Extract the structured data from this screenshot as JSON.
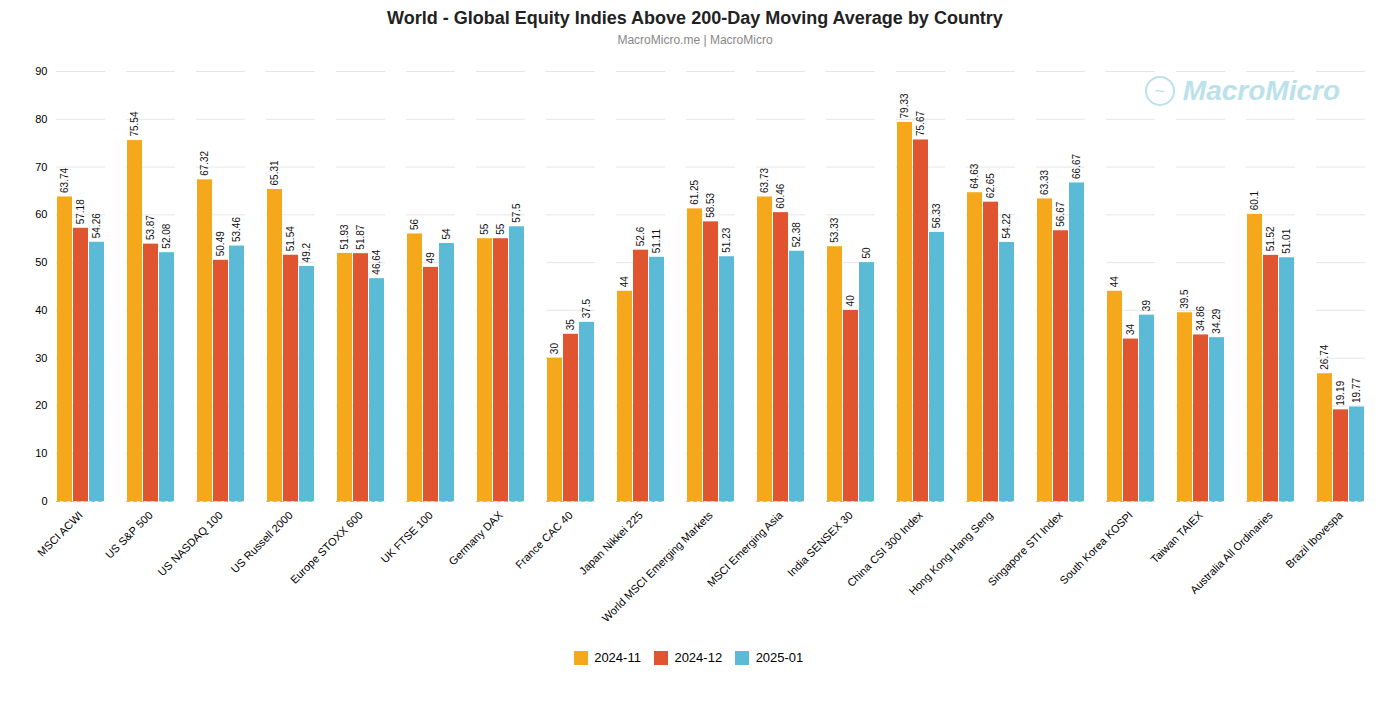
{
  "chart_data": {
    "type": "bar",
    "title": "World - Global Equity Indies Above 200-Day Moving Average by Country",
    "subtitle": "MacroMicro.me | MacroMicro",
    "annotations": [
      "MacroMicro",
      "~"
    ],
    "categories": [
      "MSCI ACWI",
      "US S&P 500",
      "US NASDAQ 100",
      "US Russell 2000",
      "Europe STOXX 600",
      "UK FTSE 100",
      "Germany DAX",
      "France CAC 40",
      "Japan Nikkei 225",
      "World MSCI Emerging Markets",
      "MSCI Emerging Asia",
      "India SENSEX 30",
      "China CSI 300 Index",
      "Hong Kong Hang Seng",
      "Singapore STI Index",
      "South Korea KOSPI",
      "Taiwan TAIEX",
      "Australia All Ordinaries",
      "Brazil Ibovespa"
    ],
    "series": [
      {
        "name": "2024-11",
        "color": "#F5A81C",
        "values": [
          63.74,
          75.54,
          67.32,
          65.31,
          51.93,
          56,
          55,
          30,
          44,
          61.25,
          63.73,
          53.33,
          79.33,
          64.63,
          63.33,
          44,
          39.5,
          60.1,
          26.74
        ]
      },
      {
        "name": "2024-12",
        "color": "#E05530",
        "values": [
          57.18,
          53.87,
          50.49,
          51.54,
          51.87,
          49,
          55,
          35,
          52.6,
          58.53,
          60.46,
          40,
          75.67,
          62.65,
          56.67,
          34,
          34.86,
          51.52,
          19.19
        ]
      },
      {
        "name": "2025-01",
        "color": "#5BBAD5",
        "values": [
          54.26,
          52.08,
          53.46,
          49.2,
          46.64,
          54,
          57.5,
          37.5,
          51.11,
          51.23,
          52.38,
          50,
          56.33,
          54.22,
          66.67,
          39,
          34.29,
          51.01,
          19.77
        ]
      }
    ],
    "ylim": [
      0,
      90
    ],
    "yticks": [
      0,
      10,
      20,
      30,
      40,
      50,
      60,
      70,
      80,
      90
    ],
    "grid": true,
    "data_labels": true,
    "legend": "bottom"
  }
}
